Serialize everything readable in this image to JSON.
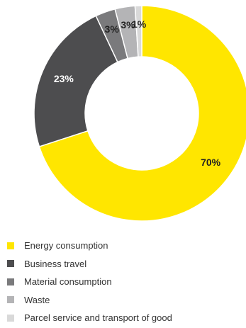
{
  "chart_data": {
    "type": "pie",
    "variant": "donut",
    "legend_position": "bottom-left",
    "slices": [
      {
        "name": "Energy consumption",
        "value": 70,
        "label": "70%",
        "color": "#FFE600",
        "label_color": "#222222"
      },
      {
        "name": "Business travel",
        "value": 23,
        "label": "23%",
        "color": "#4D4D4F",
        "label_color": "#FFFFFF"
      },
      {
        "name": "Material consumption",
        "value": 3,
        "label": "3%",
        "color": "#7A7A7C",
        "label_color": "#222222"
      },
      {
        "name": "Waste",
        "value": 3,
        "label": "3%",
        "color": "#B4B4B6",
        "label_color": "#222222"
      },
      {
        "name": "Parcel service and transport of good",
        "value": 1,
        "label": "1%",
        "color": "#D9D9D9",
        "label_color": "#222222"
      }
    ]
  }
}
